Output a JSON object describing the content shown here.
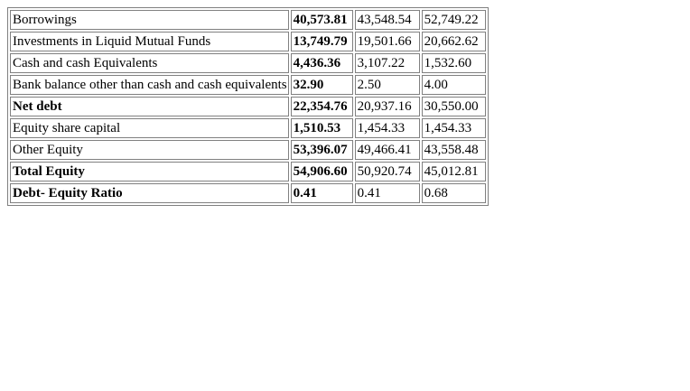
{
  "table": {
    "rows": [
      {
        "label": "Borrowings",
        "label_bold": false,
        "v1": "40,573.81",
        "v2": "43,548.54",
        "v3": "52,749.22"
      },
      {
        "label": "Investments in Liquid Mutual Funds",
        "label_bold": false,
        "v1": "13,749.79",
        "v2": "19,501.66",
        "v3": "20,662.62"
      },
      {
        "label": "Cash and cash Equivalents",
        "label_bold": false,
        "v1": "4,436.36",
        "v2": "3,107.22",
        "v3": "1,532.60"
      },
      {
        "label": "Bank balance other than cash and cash equivalents",
        "label_bold": false,
        "v1": "32.90",
        "v2": "2.50",
        "v3": "4.00"
      },
      {
        "label": "Net debt",
        "label_bold": true,
        "v1": "22,354.76",
        "v2": "20,937.16",
        "v3": "30,550.00"
      },
      {
        "label": "Equity share capital",
        "label_bold": false,
        "v1": "1,510.53",
        "v2": "1,454.33",
        "v3": "1,454.33"
      },
      {
        "label": "Other Equity",
        "label_bold": false,
        "v1": "53,396.07",
        "v2": "49,466.41",
        "v3": "43,558.48"
      },
      {
        "label": "Total Equity",
        "label_bold": true,
        "v1": "54,906.60",
        "v2": "50,920.74",
        "v3": "45,012.81"
      },
      {
        "label": "Debt- Equity Ratio",
        "label_bold": true,
        "v1": "0.41",
        "v2": "0.41",
        "v3": "0.68"
      }
    ]
  }
}
